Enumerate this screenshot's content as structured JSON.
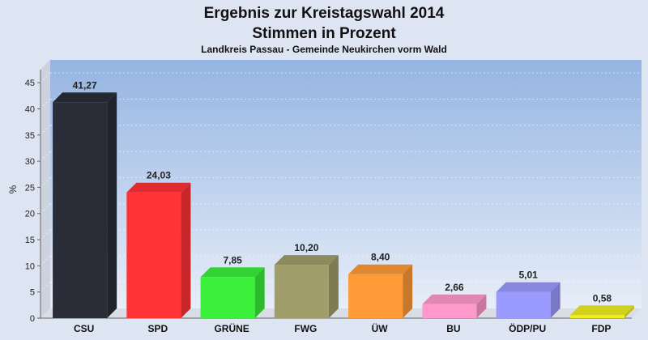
{
  "chart_data": {
    "type": "bar",
    "title": "Ergebnis zur Kreistagswahl 2014",
    "subtitle": "Stimmen in Prozent",
    "caption": "Landkreis Passau - Gemeinde Neukirchen vorm Wald",
    "ylabel": "%",
    "xlabel": "",
    "ylim": [
      0,
      47.5
    ],
    "yticks": [
      0,
      5,
      10,
      15,
      20,
      25,
      30,
      35,
      40,
      45
    ],
    "grid": true,
    "categories": [
      "CSU",
      "SPD",
      "GRÜNE",
      "FWG",
      "ÜW",
      "BU",
      "ÖDP/PU",
      "FDP"
    ],
    "values": [
      41.27,
      24.03,
      7.85,
      10.2,
      8.4,
      2.66,
      5.01,
      0.58
    ],
    "value_labels": [
      "41,27",
      "24,03",
      "7,85",
      "10,20",
      "8,40",
      "2,66",
      "5,01",
      "0,58"
    ],
    "colors": [
      "#2a2d38",
      "#ff3236",
      "#3af03a",
      "#a09e6a",
      "#ff9a36",
      "#ff99cc",
      "#9a9aff",
      "#eeee22"
    ],
    "background_gradient": [
      "#94b4e2",
      "#e8eef8"
    ]
  }
}
